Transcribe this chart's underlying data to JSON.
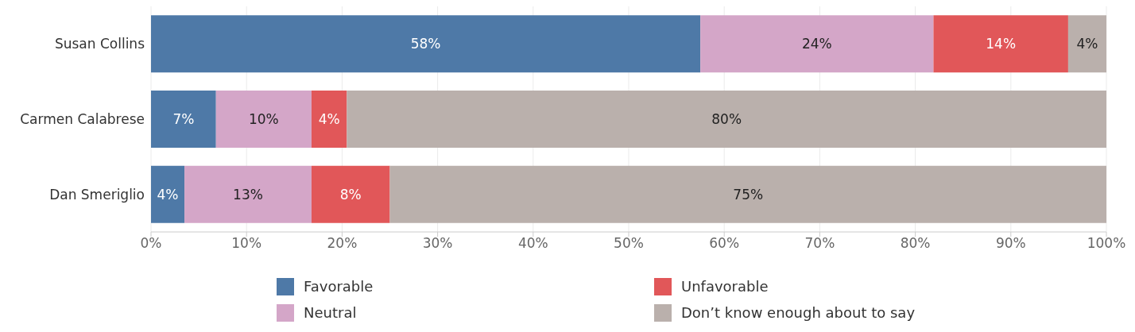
{
  "chart_data": {
    "type": "bar",
    "orientation": "horizontal",
    "stacked": true,
    "categories": [
      "Susan Collins",
      "Carmen Calabrese",
      "Dan Smeriglio"
    ],
    "series": [
      {
        "name": "Favorable",
        "color": "#4e79a7",
        "values": [
          57.5,
          6.8,
          3.5
        ],
        "value_labels": [
          "58%",
          "7%",
          "4%"
        ]
      },
      {
        "name": "Neutral",
        "color": "#d4a6c8",
        "values": [
          24.4,
          10,
          13.3
        ],
        "value_labels": [
          "24%",
          "10%",
          "13%"
        ]
      },
      {
        "name": "Unfavorable",
        "color": "#e15759",
        "values": [
          14.1,
          3.7,
          8.2
        ],
        "value_labels": [
          "14%",
          "4%",
          "8%"
        ]
      },
      {
        "name": "Don’t know enough about to say",
        "color": "#bab0ac",
        "values": [
          4,
          79.5,
          75
        ],
        "value_labels": [
          "4%",
          "80%",
          "75%"
        ]
      }
    ],
    "xlim": [
      0,
      100
    ],
    "xticks": [
      {
        "value": 0,
        "label": "0%"
      },
      {
        "value": 10,
        "label": "10%"
      },
      {
        "value": 20,
        "label": "20%"
      },
      {
        "value": 30,
        "label": "30%"
      },
      {
        "value": 40,
        "label": "40%"
      },
      {
        "value": 50,
        "label": "50%"
      },
      {
        "value": 60,
        "label": "60%"
      },
      {
        "value": 70,
        "label": "70%"
      },
      {
        "value": 80,
        "label": "80%"
      },
      {
        "value": 90,
        "label": "90%"
      },
      {
        "value": 100,
        "label": "100%"
      }
    ],
    "grid": "x",
    "legend": "bottom"
  }
}
